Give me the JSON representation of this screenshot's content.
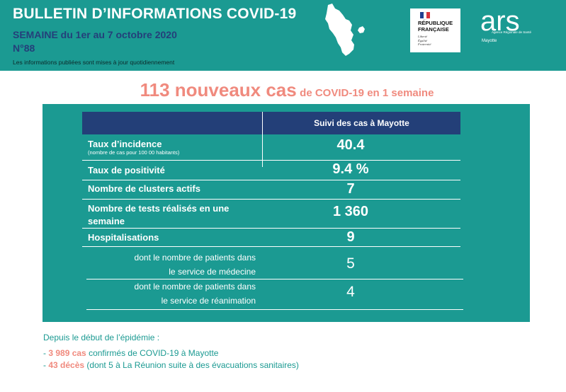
{
  "header": {
    "title": "BULLETIN D’INFORMATIONS COVID-19",
    "week": "SEMAINE du 1er au 7 octobre 2020",
    "number": "N°88",
    "note": "Les informations publiées sont mises à jour quotidiennement",
    "republique_logo": {
      "line1": "RÉPUBLIQUE",
      "line2": "FRANÇAISE",
      "motto": [
        "Liberté",
        "Égalité",
        "Fraternité"
      ]
    },
    "ars_logo": {
      "wordmark": "ars",
      "subtitle": "Agence Régionale de Santé",
      "region": "Mayotte"
    }
  },
  "headline": {
    "big": "113 nouveaux cas",
    "small": "de COVID-19 en 1 semaine"
  },
  "table": {
    "column_header": "Suivi des cas à Mayotte",
    "rows": [
      {
        "label": "Taux d’incidence",
        "note": "(nombre de cas pour 100 00 habitants)",
        "value": "40.4"
      },
      {
        "label": "Taux de positivité",
        "value": "9.4 %"
      },
      {
        "label": "Nombre de clusters actifs",
        "value": "7"
      },
      {
        "label_line1": "Nombre de tests réalisés en une",
        "label_line2": "semaine",
        "value": "1 360"
      },
      {
        "label": "Hospitalisations",
        "value": "9"
      },
      {
        "label_line1": "dont le nombre de patients dans",
        "label_line2": "le service de médecine",
        "value": "5"
      },
      {
        "label_line1": "dont le nombre de patients dans",
        "label_line2": "le service de réanimation",
        "value": "4"
      }
    ]
  },
  "footer": {
    "intro": "Depuis le début de l’épidémie :",
    "line1_prefix": "- ",
    "line1_bold": "3 989 cas",
    "line1_rest": " confirmés de COVID-19 à Mayotte",
    "line2_prefix": "- ",
    "line2_bold": "43 décès",
    "line2_rest": " (dont 5 à La Réunion suite à des évacuations sanitaires)"
  },
  "colors": {
    "teal": "#1b9a92",
    "navy": "#233f78",
    "salmon": "#f08a7e",
    "white": "#ffffff"
  }
}
